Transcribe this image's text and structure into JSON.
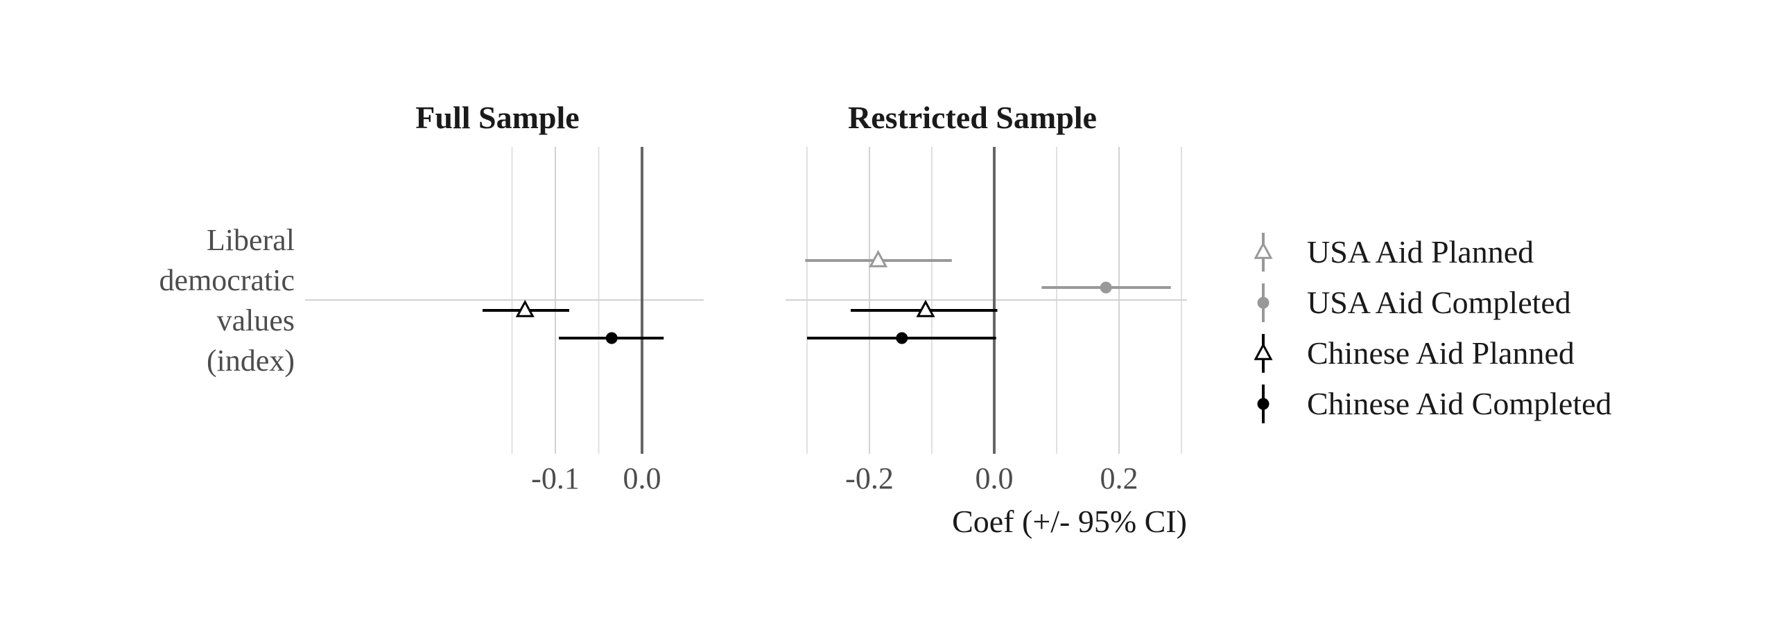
{
  "chart_data": {
    "type": "scatter",
    "subtype": "coefficient-plot",
    "y_category": "Liberal democratic values (index)",
    "y_category_lines": [
      "Liberal",
      "democratic",
      "values",
      "(index)"
    ],
    "xlabel": "Coef (+/- 95% CI)",
    "grid": true,
    "legend_position": "right",
    "legend": [
      {
        "name": "USA Aid Planned",
        "color": "#999999",
        "marker": "open-triangle"
      },
      {
        "name": "USA Aid Completed",
        "color": "#999999",
        "marker": "filled-circle"
      },
      {
        "name": "Chinese Aid Planned",
        "color": "#000000",
        "marker": "open-triangle"
      },
      {
        "name": "Chinese Aid Completed",
        "color": "#000000",
        "marker": "filled-circle"
      }
    ],
    "panels": [
      {
        "title": "Full Sample",
        "xlim": [
          -0.187,
          0.036
        ],
        "ticks": [
          -0.1,
          0.0
        ],
        "tick_labels": [
          "-0.1",
          "0.0"
        ],
        "series": [
          {
            "name": "Chinese Aid Planned",
            "estimate": -0.135,
            "ci": [
              -0.184,
              -0.084
            ]
          },
          {
            "name": "Chinese Aid Completed",
            "estimate": -0.035,
            "ci": [
              -0.096,
              0.025
            ]
          }
        ]
      },
      {
        "title": "Restricted Sample",
        "xlim": [
          -0.33,
          0.31
        ],
        "ticks": [
          -0.2,
          0.0,
          0.2
        ],
        "tick_labels": [
          "-0.2",
          "0.0",
          "0.2"
        ],
        "series": [
          {
            "name": "USA Aid Planned",
            "estimate": -0.186,
            "ci": [
              -0.303,
              -0.068
            ]
          },
          {
            "name": "USA Aid Completed",
            "estimate": 0.179,
            "ci": [
              0.076,
              0.283
            ]
          },
          {
            "name": "Chinese Aid Planned",
            "estimate": -0.11,
            "ci": [
              -0.23,
              0.005
            ]
          },
          {
            "name": "Chinese Aid Completed",
            "estimate": -0.148,
            "ci": [
              -0.3,
              0.003
            ]
          }
        ]
      }
    ]
  }
}
